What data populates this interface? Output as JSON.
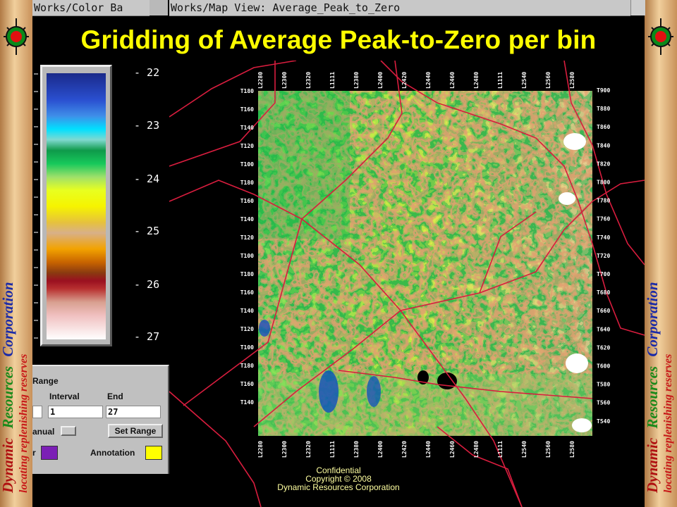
{
  "windows": {
    "colorbar_title": "Works/Color Ba",
    "map_title": "Works/Map View: Average_Peak_to_Zero"
  },
  "slide": {
    "title": "Gridding of Average Peak-to-Zero per bin",
    "sidebar_words": [
      "Dynamic",
      "Resources",
      "Corporation"
    ],
    "sidebar_tagline": "locating replenishing reserves",
    "footer": [
      "Confidential",
      "Copyright © 2008",
      "Dynamic Resources Corporation"
    ]
  },
  "colors": {
    "title": "#ffff00",
    "sidebar_word1": "#b01010",
    "sidebar_word2": "#1a8a1a",
    "sidebar_word3": "#1a2aa8",
    "tagline": "#c81818",
    "boundary": "#d81d3e",
    "overlay_color": "#7b1fb5",
    "annotation_color": "#ffff00"
  },
  "colorbar": {
    "labels": [
      "- 22",
      "- 23",
      "- 24",
      "- 25",
      "- 26",
      "- 27"
    ]
  },
  "controls": {
    "range_label": "Range",
    "interval_label": "Interval",
    "end_label": "End",
    "interval_value": "1",
    "end_value": "27",
    "mode_value": "anual",
    "set_range_label": "Set Range",
    "overlay_label": "r",
    "annotation_label": "Annotation"
  },
  "map": {
    "top_labels": [
      "L2280",
      "L2300",
      "L2320",
      "L1111",
      "L2380",
      "L2400",
      "L2420",
      "L2440",
      "L2460",
      "L2480",
      "L1111",
      "L2540",
      "L2560",
      "L2580"
    ],
    "bottom_labels": [
      "L2280",
      "L2300",
      "L2320",
      "L1111",
      "L2380",
      "L2400",
      "L2420",
      "L2440",
      "L2460",
      "L2480",
      "L1111",
      "L2540",
      "L2560",
      "L2580"
    ],
    "left_labels": [
      "T180",
      "T160",
      "T140",
      "T120",
      "T100",
      "T180",
      "T160",
      "T140",
      "T120",
      "T100",
      "T180",
      "T160",
      "T140",
      "T120",
      "T100",
      "T180",
      "T160",
      "T140"
    ],
    "right_labels": [
      "T900",
      "T880",
      "T860",
      "T840",
      "T820",
      "T800",
      "T780",
      "T760",
      "T740",
      "T720",
      "T700",
      "T680",
      "T660",
      "T640",
      "T620",
      "T600",
      "T580",
      "T560",
      "T540"
    ]
  }
}
